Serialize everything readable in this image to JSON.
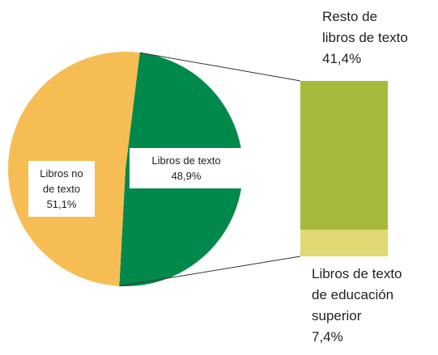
{
  "chart_data": {
    "type": "pie-of-bar",
    "pie": {
      "categories": [
        "Libros no de texto",
        "Libros de texto"
      ],
      "values": [
        51.1,
        48.9
      ],
      "value_labels": [
        "51,1%",
        "48,9%"
      ],
      "colors": [
        "#f6bd55",
        "#00894a"
      ]
    },
    "bar": {
      "categories": [
        "Resto de libros de texto",
        "Libros de texto de educación superior"
      ],
      "values": [
        41.4,
        7.4
      ],
      "value_labels": [
        "41,4%",
        "7,4%"
      ],
      "colors": [
        "#a7b93b",
        "#e0d873"
      ]
    }
  }
}
